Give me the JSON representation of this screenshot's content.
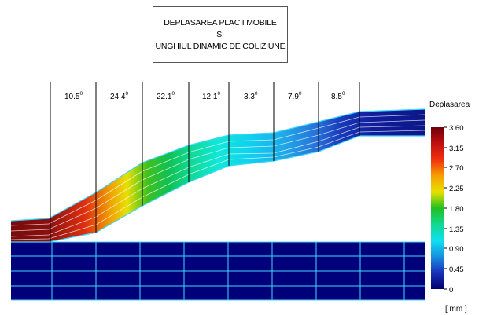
{
  "title": {
    "line1": "DEPLASAREA PLACII MOBILE",
    "line2": "SI",
    "line3": "UNGHIUL DINAMIC DE COLIZIUNE"
  },
  "angles": [
    "10.5",
    "24.4",
    "22.1",
    "12.1",
    "3.3",
    "7.9",
    "8.5"
  ],
  "degree_symbol": "0",
  "legend": {
    "title": "Deplasarea",
    "unit": "[ mm ]",
    "ticks": [
      "3.60",
      "3.15",
      "2.70",
      "2.25",
      "1.80",
      "1.35",
      "0.90",
      "0.45",
      "0"
    ],
    "min": 0,
    "max": 3.6
  },
  "colors": {
    "lower_plate": "#00007a",
    "mesh_lines": "#3fd7ff",
    "leader_lines": "#000000"
  }
}
